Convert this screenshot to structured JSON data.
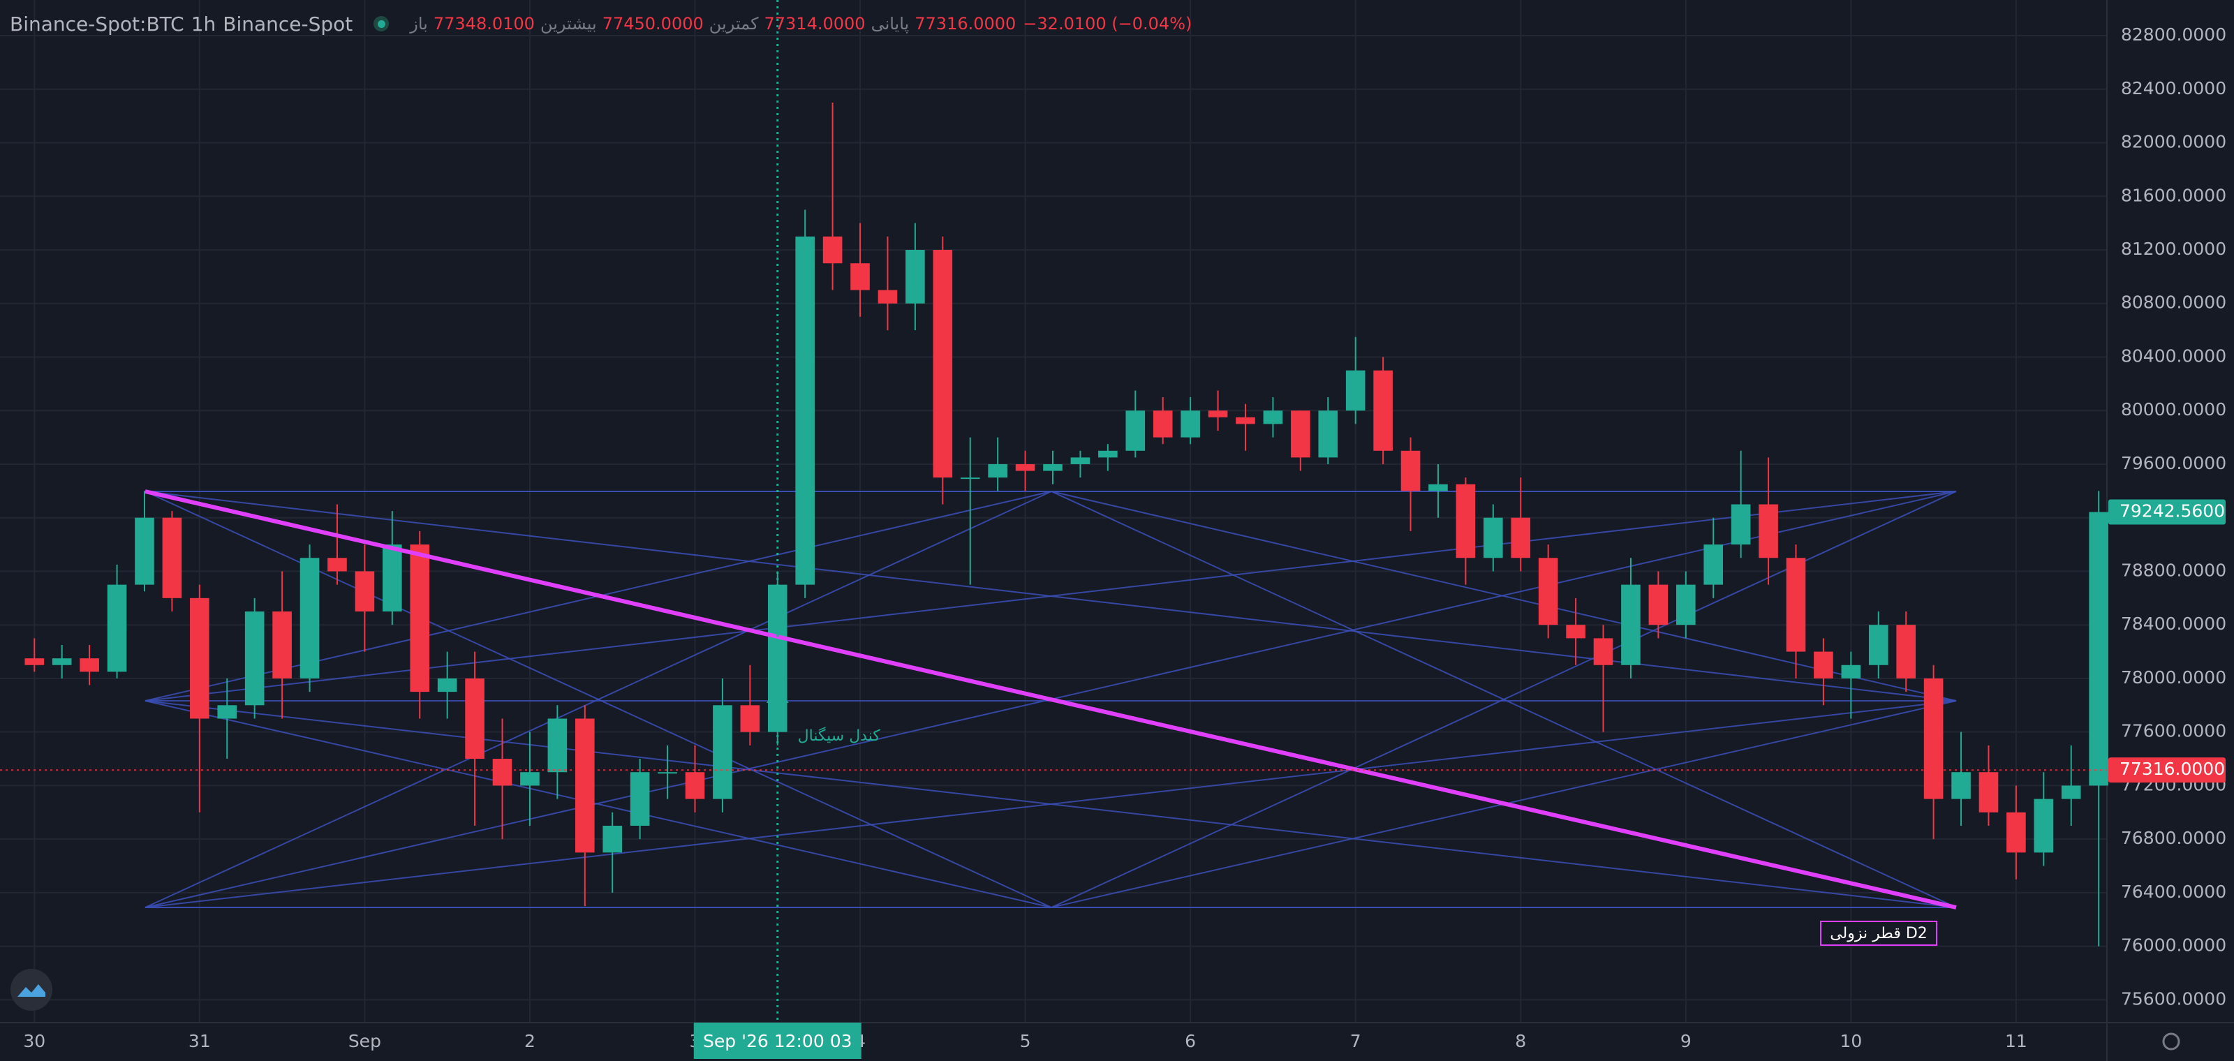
{
  "header": {
    "symbol": "Binance-Spot:BTC",
    "interval": "1h",
    "exchange": "Binance-Spot",
    "fields": [
      {
        "label": "باز",
        "value": "77348.0100"
      },
      {
        "label": "بیشترین",
        "value": "77450.0000"
      },
      {
        "label": "کمترین",
        "value": "77314.0000"
      },
      {
        "label": "پایانی",
        "value": "77316.0000"
      }
    ],
    "change": "−32.0100 (−0.04%)"
  },
  "chart_data": {
    "type": "candlestick",
    "up_color": "#22ab94",
    "down_color": "#f23645",
    "x": [
      0,
      4,
      8,
      12,
      16,
      20,
      24,
      28,
      32,
      36,
      40,
      44,
      48,
      52,
      56,
      60,
      64,
      68,
      72,
      76,
      80,
      84,
      88,
      92,
      96,
      100,
      104,
      108,
      112,
      116,
      120,
      124,
      128,
      132,
      136,
      140,
      144,
      148,
      152,
      156,
      160,
      164,
      168,
      172,
      176,
      180,
      184,
      188,
      192,
      196,
      200,
      204,
      208,
      212,
      216,
      220,
      224,
      228,
      232,
      236,
      240,
      244,
      248,
      252,
      256,
      260,
      264,
      268,
      272,
      276,
      280,
      284,
      288,
      292,
      296,
      300
    ],
    "open": [
      78150,
      78100,
      78150,
      78050,
      78700,
      79200,
      78600,
      77700,
      77800,
      78500,
      78000,
      78900,
      78800,
      78500,
      79000,
      77900,
      78000,
      77400,
      77200,
      77300,
      77700,
      76700,
      76900,
      77300,
      77300,
      77100,
      77800,
      77600,
      78700,
      81300,
      81100,
      80900,
      80800,
      81200,
      79500,
      79500,
      79600,
      79550,
      79600,
      79650,
      79700,
      80000,
      79800,
      80000,
      79950,
      79900,
      80000,
      79650,
      80000,
      80300,
      79700,
      79400,
      79450,
      78900,
      79200,
      78900,
      78400,
      78300,
      78100,
      78700,
      78400,
      78700,
      79000,
      79300,
      78900,
      78200,
      78000,
      78100,
      78400,
      78000,
      77100,
      77300,
      77000,
      76700,
      77100,
      77200
    ],
    "high": [
      78300,
      78250,
      78250,
      78850,
      79400,
      79250,
      78700,
      78000,
      78600,
      78800,
      79000,
      79300,
      79000,
      79250,
      79100,
      78200,
      78200,
      77700,
      77600,
      77800,
      77800,
      77000,
      77400,
      77500,
      77500,
      78000,
      78100,
      78800,
      81500,
      82300,
      81400,
      81300,
      81400,
      81300,
      79800,
      79800,
      79700,
      79700,
      79700,
      79750,
      80150,
      80100,
      80100,
      80150,
      80050,
      80100,
      80000,
      80100,
      80550,
      80400,
      79800,
      79600,
      79500,
      79300,
      79500,
      79000,
      78600,
      78400,
      78900,
      78800,
      78800,
      79200,
      79700,
      79650,
      79000,
      78300,
      78200,
      78500,
      78500,
      78100,
      77600,
      77500,
      77200,
      77300,
      77500,
      79400
    ],
    "low": [
      78050,
      78000,
      77950,
      78000,
      78650,
      78500,
      77000,
      77400,
      77700,
      77700,
      77900,
      78700,
      78200,
      78400,
      77700,
      77700,
      76900,
      76800,
      76900,
      77100,
      76300,
      76400,
      76800,
      77100,
      77000,
      77000,
      77500,
      77500,
      78600,
      80900,
      80700,
      80600,
      80600,
      79300,
      78700,
      79400,
      79400,
      79450,
      79500,
      79550,
      79650,
      79750,
      79750,
      79850,
      79700,
      79800,
      79550,
      79600,
      79900,
      79600,
      79100,
      79200,
      78700,
      78800,
      78800,
      78300,
      78100,
      77600,
      78000,
      78300,
      78300,
      78600,
      78900,
      78700,
      78000,
      77800,
      77700,
      78000,
      77900,
      76800,
      76900,
      76900,
      76500,
      76600,
      76900,
      76000
    ],
    "close": [
      78100,
      78150,
      78050,
      78700,
      79200,
      78600,
      77700,
      77800,
      78500,
      78000,
      78900,
      78800,
      78500,
      79000,
      77900,
      78000,
      77400,
      77200,
      77300,
      77700,
      76700,
      76900,
      77300,
      77300,
      77100,
      77800,
      77600,
      78700,
      81300,
      81100,
      80900,
      80800,
      81200,
      79500,
      79500,
      79600,
      79550,
      79600,
      79650,
      79700,
      80000,
      79800,
      80000,
      79950,
      79900,
      80000,
      79650,
      80000,
      80300,
      79700,
      79400,
      79450,
      78900,
      79200,
      78900,
      78400,
      78300,
      78100,
      78700,
      78400,
      78700,
      79000,
      79300,
      78900,
      78200,
      78000,
      78100,
      78400,
      78000,
      77100,
      77300,
      77000,
      76700,
      77100,
      77200,
      79242.56
    ],
    "xlim": [
      -5,
      301.2
    ],
    "xticks": [
      {
        "value": 0,
        "label": "30"
      },
      {
        "value": 24,
        "label": "31"
      },
      {
        "value": 48,
        "label": "Sep"
      },
      {
        "value": 72,
        "label": "2"
      },
      {
        "value": 96,
        "label": "3"
      },
      {
        "value": 120,
        "label": "4"
      },
      {
        "value": 144,
        "label": "5"
      },
      {
        "value": 168,
        "label": "6"
      },
      {
        "value": 192,
        "label": "7"
      },
      {
        "value": 216,
        "label": "8"
      },
      {
        "value": 240,
        "label": "9"
      },
      {
        "value": 264,
        "label": "10"
      },
      {
        "value": 288,
        "label": "11"
      }
    ],
    "ylim": [
      75430,
      83066
    ],
    "yticks": [
      {
        "value": 75600,
        "label": "75600.0000"
      },
      {
        "value": 76000,
        "label": "76000.0000"
      },
      {
        "value": 76400,
        "label": "76400.0000"
      },
      {
        "value": 76800,
        "label": "76800.0000"
      },
      {
        "value": 77200,
        "label": "77200.0000"
      },
      {
        "value": 77600,
        "label": "77600.0000"
      },
      {
        "value": 78000,
        "label": "78000.0000"
      },
      {
        "value": 78400,
        "label": "78400.0000"
      },
      {
        "value": 78800,
        "label": "78800.0000"
      },
      {
        "value": 79200,
        "label": "79200.0000"
      },
      {
        "value": 79600,
        "label": "79600.0000"
      },
      {
        "value": 80000,
        "label": "80000.0000"
      },
      {
        "value": 80400,
        "label": "80400.0000"
      },
      {
        "value": 80800,
        "label": "80800.0000"
      },
      {
        "value": 81200,
        "label": "81200.0000"
      },
      {
        "value": 81600,
        "label": "81600.0000"
      },
      {
        "value": 82000,
        "label": "82000.0000"
      },
      {
        "value": 82400,
        "label": "82400.0000"
      },
      {
        "value": 82800,
        "label": "82800.0000"
      }
    ],
    "grid": true,
    "last_price": {
      "value": 79242.56,
      "label": "79242.5600"
    },
    "crosshair": {
      "x": 108,
      "time_label": "Sep '26  12:00 03",
      "price": {
        "value": 77316,
        "label": "77316.0000"
      }
    },
    "annotations": {
      "signal": "کندل سیگنال",
      "trend": "قطر نزولی D2"
    }
  }
}
